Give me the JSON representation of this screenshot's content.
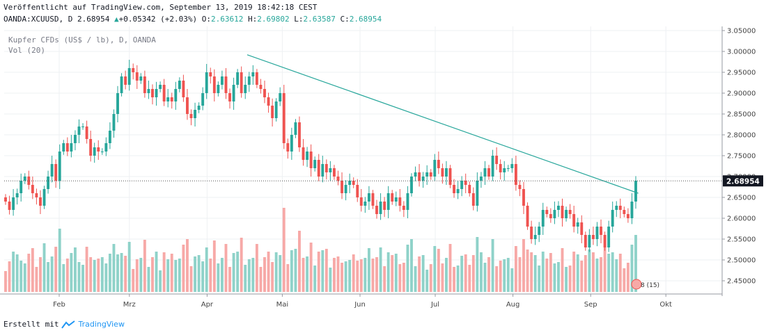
{
  "header": {
    "published": "Veröffentlicht auf TradingView.com, September 13, 2019 18:42:18 CEST",
    "symbol": "OANDA:XCUUSD, D",
    "last": "2.68954",
    "change_arrow": "▲",
    "change": "+0.05342 (+2.03%)",
    "o_label": "O:",
    "o_value": "2.63612",
    "h_label": "H:",
    "h_value": "2.69802",
    "l_label": "L:",
    "l_value": "2.63587",
    "c_label": "C:",
    "c_value": "2.68954"
  },
  "legend": {
    "title": "Kupfer CFDs (US$ / lb), D, OANDA",
    "volume": "Vol (20)"
  },
  "footer": {
    "created_with": "Erstellt mit",
    "brand": "TradingView"
  },
  "colors": {
    "up": "#26a69a",
    "down": "#ef5350",
    "vol_up": "#8fd2c9",
    "vol_down": "#f7a9a7",
    "trendline": "#26a69a",
    "price_label_bg": "#131722"
  },
  "chart_data": {
    "type": "candlestick",
    "symbol": "OANDA:XCUUSD",
    "ylim": [
      2.42,
      3.06
    ],
    "yticks": [
      "3.05000",
      "3.00000",
      "2.95000",
      "2.90000",
      "2.85000",
      "2.80000",
      "2.75000",
      "2.70000",
      "2.65000",
      "2.60000",
      "2.55000",
      "2.50000",
      "2.45000"
    ],
    "yticks_values": [
      3.05,
      3.0,
      2.95,
      2.9,
      2.85,
      2.8,
      2.75,
      2.7,
      2.65,
      2.6,
      2.55,
      2.5,
      2.45
    ],
    "xticks": [
      "Feb",
      "Mrz",
      "Apr",
      "Mai",
      "Jun",
      "Jul",
      "Aug",
      "Sep",
      "Okt"
    ],
    "last_price_label": "2.68954",
    "last_price": 2.68954,
    "trendline": {
      "start": [
        "2019-04-17",
        2.992
      ],
      "end": [
        "2019-09-20",
        2.66
      ]
    },
    "event_marker": "8 (15)",
    "close": [
      2.64,
      2.62,
      2.65,
      2.66,
      2.69,
      2.7,
      2.68,
      2.66,
      2.65,
      2.63,
      2.67,
      2.7,
      2.73,
      2.69,
      2.76,
      2.78,
      2.76,
      2.78,
      2.8,
      2.82,
      2.82,
      2.79,
      2.75,
      2.77,
      2.76,
      2.76,
      2.78,
      2.81,
      2.85,
      2.9,
      2.94,
      2.92,
      2.96,
      2.95,
      2.93,
      2.94,
      2.9,
      2.91,
      2.89,
      2.91,
      2.92,
      2.88,
      2.89,
      2.88,
      2.91,
      2.93,
      2.89,
      2.85,
      2.84,
      2.86,
      2.87,
      2.9,
      2.95,
      2.94,
      2.9,
      2.92,
      2.94,
      2.9,
      2.88,
      2.92,
      2.95,
      2.9,
      2.92,
      2.94,
      2.95,
      2.92,
      2.91,
      2.89,
      2.87,
      2.84,
      2.88,
      2.9,
      2.78,
      2.76,
      2.8,
      2.83,
      2.77,
      2.74,
      2.76,
      2.72,
      2.74,
      2.7,
      2.73,
      2.71,
      2.72,
      2.7,
      2.69,
      2.66,
      2.68,
      2.69,
      2.68,
      2.65,
      2.63,
      2.64,
      2.66,
      2.63,
      2.61,
      2.64,
      2.62,
      2.66,
      2.64,
      2.65,
      2.63,
      2.62,
      2.66,
      2.7,
      2.71,
      2.69,
      2.7,
      2.71,
      2.7,
      2.74,
      2.72,
      2.7,
      2.72,
      2.68,
      2.66,
      2.67,
      2.69,
      2.68,
      2.66,
      2.63,
      2.69,
      2.7,
      2.72,
      2.7,
      2.75,
      2.73,
      2.71,
      2.72,
      2.72,
      2.73,
      2.68,
      2.67,
      2.63,
      2.58,
      2.55,
      2.56,
      2.58,
      2.62,
      2.61,
      2.6,
      2.62,
      2.63,
      2.6,
      2.62,
      2.61,
      2.58,
      2.59,
      2.56,
      2.53,
      2.56,
      2.55,
      2.58,
      2.56,
      2.53,
      2.58,
      2.62,
      2.63,
      2.62,
      2.61,
      2.6,
      2.64,
      2.69
    ]
  }
}
